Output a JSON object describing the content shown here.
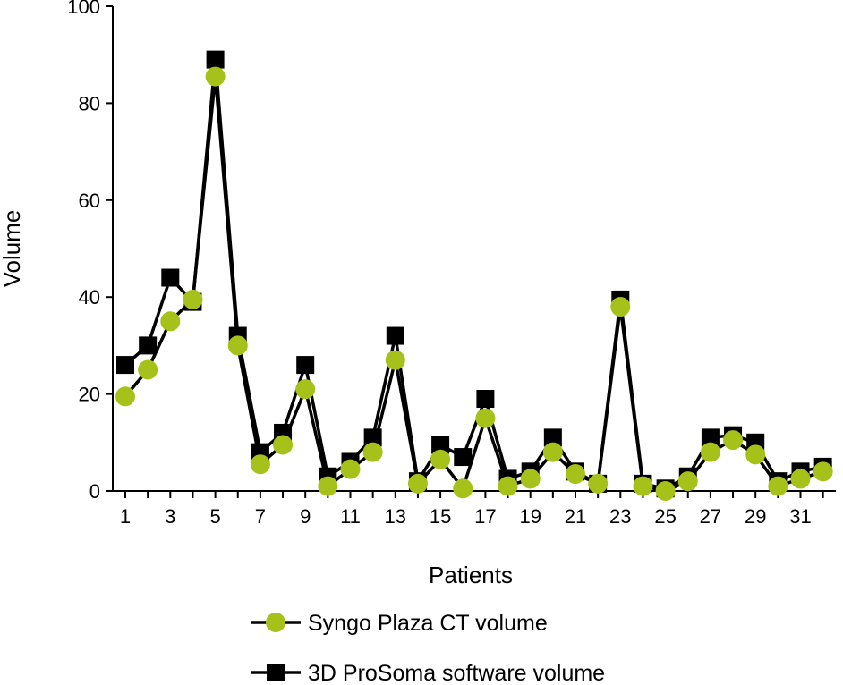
{
  "chart_data": {
    "type": "line",
    "title": "",
    "xlabel": "Patients",
    "ylabel": "Volume",
    "ylim": [
      0,
      100
    ],
    "xlim": [
      1,
      32
    ],
    "yticks": [
      0,
      20,
      40,
      60,
      80,
      100
    ],
    "xtick_labels": [
      "1",
      "3",
      "5",
      "7",
      "9",
      "11",
      "13",
      "15",
      "17",
      "19",
      "21",
      "23",
      "25",
      "27",
      "29",
      "31"
    ],
    "x": [
      1,
      2,
      3,
      4,
      5,
      6,
      7,
      8,
      9,
      10,
      11,
      12,
      13,
      14,
      15,
      16,
      17,
      18,
      19,
      20,
      21,
      22,
      23,
      24,
      25,
      26,
      27,
      28,
      29,
      30,
      31,
      32
    ],
    "grid": false,
    "legend_position": "bottom",
    "series": [
      {
        "name": "3D ProSoma software volume",
        "marker": "square",
        "line_color": "#000000",
        "marker_color": "#000000",
        "values": [
          26,
          30,
          44,
          39,
          89,
          32,
          8,
          12,
          26,
          3,
          6,
          11,
          32,
          2,
          9.5,
          7,
          19,
          2.5,
          4,
          11,
          4,
          1.5,
          39.5,
          1.5,
          0.5,
          3,
          11,
          11.5,
          10,
          2,
          4,
          5
        ]
      },
      {
        "name": "Syngo Plaza CT volume",
        "marker": "circle",
        "line_color": "#000000",
        "marker_color": "#a6c21a",
        "values": [
          19.5,
          25,
          35,
          39.5,
          85.5,
          30,
          5.5,
          9.5,
          21,
          1,
          4.5,
          8,
          27,
          1.5,
          6.5,
          0.5,
          15,
          1,
          2.5,
          8,
          3.5,
          1.5,
          38,
          1,
          0,
          2,
          8,
          10.5,
          7.5,
          1,
          2.5,
          4
        ]
      }
    ]
  }
}
